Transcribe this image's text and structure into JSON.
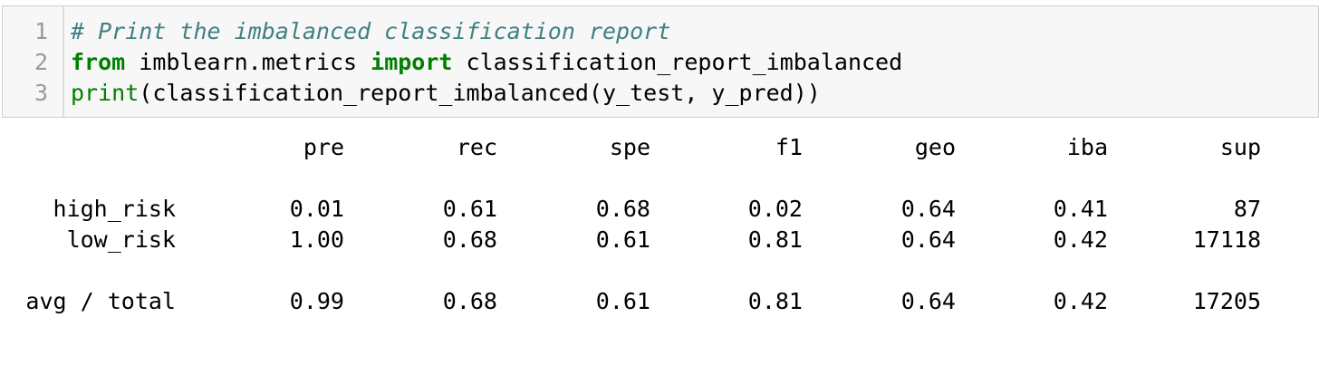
{
  "code_cell": {
    "line_numbers": [
      "1",
      "2",
      "3"
    ],
    "line1_comment": "# Print the imbalanced classification report",
    "line2_kw_from": "from",
    "line2_module": " imblearn.metrics ",
    "line2_kw_import": "import",
    "line2_name": " classification_report_imbalanced",
    "line3_builtin": "print",
    "line3_rest": "(classification_report_imbalanced(y_test, y_pred))"
  },
  "report": {
    "headers": [
      "pre",
      "rec",
      "spe",
      "f1",
      "geo",
      "iba",
      "sup"
    ],
    "rows": [
      {
        "label": "high_risk",
        "values": [
          "0.01",
          "0.61",
          "0.68",
          "0.02",
          "0.64",
          "0.41",
          "87"
        ]
      },
      {
        "label": "low_risk",
        "values": [
          "1.00",
          "0.68",
          "0.61",
          "0.81",
          "0.64",
          "0.42",
          "17118"
        ]
      }
    ],
    "total": {
      "label": "avg / total",
      "values": [
        "0.99",
        "0.68",
        "0.61",
        "0.81",
        "0.64",
        "0.42",
        "17205"
      ]
    }
  }
}
